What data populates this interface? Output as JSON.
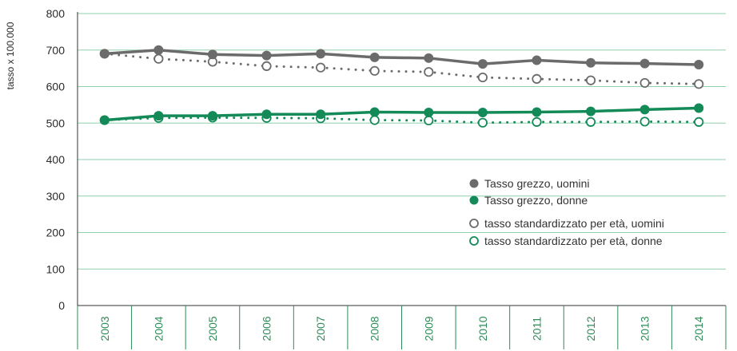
{
  "chart_data": {
    "type": "line",
    "title": "",
    "xlabel": "",
    "ylabel": "tasso x 100.000",
    "ylim": [
      0,
      800
    ],
    "yticks": [
      "0",
      "100",
      "200",
      "300",
      "400",
      "500",
      "600",
      "700",
      "800"
    ],
    "x": [
      "2003",
      "2004",
      "2005",
      "2006",
      "2007",
      "2008",
      "2009",
      "2010",
      "2011",
      "2012",
      "2013",
      "2014"
    ],
    "grid": true,
    "legend_position": "center-right",
    "series": [
      {
        "name": "Tasso grezzo, uomini",
        "style": "solid-line-filled-marker",
        "color": "#6b6b6b",
        "values": [
          690,
          700,
          688,
          685,
          690,
          680,
          678,
          662,
          672,
          665,
          663,
          660
        ]
      },
      {
        "name": "Tasso grezzo, donne",
        "style": "solid-line-filled-marker",
        "color": "#138a57",
        "values": [
          508,
          520,
          520,
          524,
          524,
          530,
          529,
          529,
          530,
          532,
          537,
          541
        ]
      },
      {
        "name": "tasso standardizzato per età, uomini",
        "style": "dotted-line-hollow-marker",
        "color": "#6b6b6b",
        "values": [
          690,
          676,
          668,
          656,
          652,
          643,
          640,
          625,
          621,
          617,
          610,
          607
        ]
      },
      {
        "name": "tasso standardizzato per età, donne",
        "style": "dotted-line-hollow-marker",
        "color": "#138a57",
        "values": [
          508,
          514,
          515,
          514,
          513,
          508,
          507,
          501,
          503,
          503,
          504,
          503
        ]
      }
    ]
  }
}
